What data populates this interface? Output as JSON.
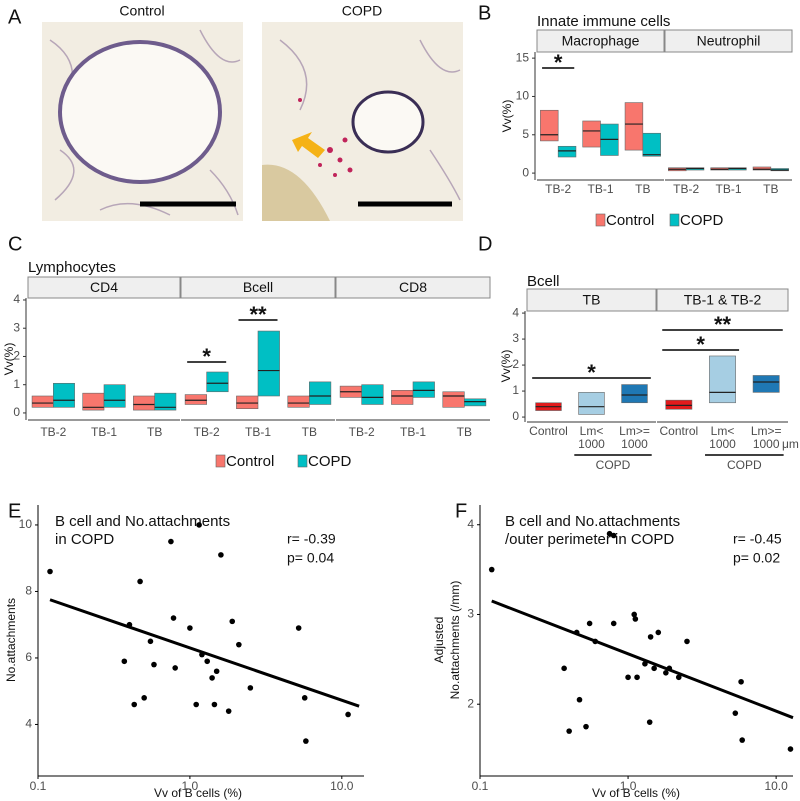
{
  "panel_labels": [
    "A",
    "B",
    "C",
    "D",
    "E",
    "F"
  ],
  "images": {
    "titles": [
      "Control",
      "COPD"
    ]
  },
  "chart_data": [
    {
      "type": "crossbar",
      "title": "Innate immune cells",
      "ylabel": "Vv(%)",
      "categories": [
        "TB-2",
        "TB-1",
        "TB"
      ],
      "series": [
        {
          "name": "Control",
          "color": "#f8766d"
        },
        {
          "name": "COPD",
          "color": "#00bfc4"
        }
      ],
      "facets": [
        {
          "name": "Macrophage",
          "series": [
            {
              "lower": [
                4.2,
                3.4,
                3.0
              ],
              "median": [
                5.0,
                5.5,
                6.4
              ],
              "upper": [
                8.2,
                6.8,
                9.2
              ]
            },
            {
              "lower": [
                2.1,
                2.3,
                2.2
              ],
              "median": [
                2.9,
                4.4,
                2.4
              ],
              "upper": [
                3.5,
                6.4,
                5.2
              ]
            }
          ]
        },
        {
          "name": "Neutrophil",
          "series": [
            {
              "lower": [
                0.3,
                0.4,
                0.4
              ],
              "median": [
                0.5,
                0.5,
                0.5
              ],
              "upper": [
                0.7,
                0.7,
                0.8
              ]
            },
            {
              "lower": [
                0.4,
                0.4,
                0.3
              ],
              "median": [
                0.6,
                0.6,
                0.4
              ],
              "upper": [
                0.7,
                0.7,
                0.6
              ]
            }
          ]
        }
      ],
      "ylim": [
        -0.9,
        15.8
      ],
      "yticks": [
        0,
        5,
        10,
        15
      ],
      "annotations": [
        "*"
      ]
    },
    {
      "type": "crossbar",
      "title": "Lymphocytes",
      "ylabel": "Vv(%)",
      "categories": [
        "TB-2",
        "TB-1",
        "TB"
      ],
      "series": [
        {
          "name": "Control",
          "color": "#f8766d"
        },
        {
          "name": "COPD",
          "color": "#00bfc4"
        }
      ],
      "facets": [
        {
          "name": "CD4",
          "series": [
            {
              "lower": [
                0.2,
                0.1,
                0.1
              ],
              "median": [
                0.35,
                0.2,
                0.3
              ],
              "upper": [
                0.6,
                0.7,
                0.6
              ]
            },
            {
              "lower": [
                0.2,
                0.2,
                0.1
              ],
              "median": [
                0.45,
                0.45,
                0.2
              ],
              "upper": [
                1.05,
                1.0,
                0.7
              ]
            }
          ]
        },
        {
          "name": "Bcell",
          "series": [
            {
              "lower": [
                0.3,
                0.15,
                0.2
              ],
              "median": [
                0.45,
                0.35,
                0.35
              ],
              "upper": [
                0.65,
                0.6,
                0.6
              ]
            },
            {
              "lower": [
                0.75,
                0.6,
                0.3
              ],
              "median": [
                1.05,
                1.5,
                0.6
              ],
              "upper": [
                1.45,
                2.9,
                1.1
              ]
            }
          ]
        },
        {
          "name": "CD8",
          "series": [
            {
              "lower": [
                0.55,
                0.3,
                0.2
              ],
              "median": [
                0.75,
                0.6,
                0.6
              ],
              "upper": [
                0.95,
                0.8,
                0.75
              ]
            },
            {
              "lower": [
                0.3,
                0.55,
                0.25
              ],
              "median": [
                0.55,
                0.8,
                0.4
              ],
              "upper": [
                1.0,
                1.1,
                0.5
              ]
            }
          ]
        }
      ],
      "ylim": [
        -0.25,
        4.07
      ],
      "yticks": [
        0,
        1,
        2,
        3,
        4
      ],
      "annotations": [
        "*",
        "**"
      ]
    },
    {
      "type": "crossbar",
      "title": "Bcell",
      "ylabel": "Vv(%)",
      "categories": [
        [
          "Control"
        ],
        [
          "Lm<",
          "1000"
        ],
        [
          "Lm>=",
          "1000"
        ]
      ],
      "colors": [
        "#e31a1c",
        "#a6cee3",
        "#1f78b4"
      ],
      "group_label": "COPD",
      "unit": "μm",
      "facets": [
        {
          "name": "TB",
          "lower": [
            0.25,
            0.1,
            0.55
          ],
          "median": [
            0.4,
            0.4,
            0.85
          ],
          "upper": [
            0.55,
            0.95,
            1.25
          ]
        },
        {
          "name": "TB-1 & TB-2",
          "lower": [
            0.3,
            0.55,
            0.95
          ],
          "median": [
            0.45,
            0.95,
            1.35
          ],
          "upper": [
            0.65,
            2.35,
            1.6
          ]
        }
      ],
      "ylim": [
        -0.19,
        4.08
      ],
      "yticks": [
        0,
        1,
        2,
        3,
        4
      ],
      "annotations": [
        "*",
        "*",
        "**"
      ]
    },
    {
      "type": "scatter",
      "title": [
        "B cell and No.attachments",
        "in COPD"
      ],
      "xlabel": "Vv of B cells (%)",
      "ylabel": [
        "No.attachments"
      ],
      "x": [
        0.12,
        0.37,
        0.4,
        0.43,
        0.47,
        0.5,
        0.55,
        0.58,
        0.75,
        0.78,
        0.8,
        1.0,
        1.1,
        1.15,
        1.2,
        1.3,
        1.4,
        1.45,
        1.5,
        1.6,
        1.8,
        1.9,
        2.1,
        2.5,
        5.2,
        5.7,
        5.8,
        11
      ],
      "y": [
        8.6,
        5.9,
        7.0,
        4.6,
        8.3,
        4.8,
        6.5,
        5.8,
        9.5,
        7.2,
        5.7,
        6.9,
        4.6,
        10.0,
        6.1,
        5.9,
        5.4,
        4.6,
        5.6,
        9.1,
        4.4,
        7.1,
        6.4,
        5.1,
        6.9,
        4.8,
        3.5,
        4.3
      ],
      "color": "#000000",
      "fit": {
        "x": [
          0.12,
          13
        ],
        "y": [
          7.75,
          4.55
        ]
      },
      "annotations": [
        "r= -0.39",
        "p= 0.04"
      ],
      "xscale": "log",
      "xlim": [
        0.1,
        14
      ],
      "xticks": [
        0.1,
        {
          "value": 1,
          "label": "1.0"
        },
        {
          "value": 10,
          "label": "10.0"
        }
      ],
      "ylim": [
        2.45,
        10.6
      ],
      "yticks": [
        4,
        6,
        8,
        10
      ]
    },
    {
      "type": "scatter",
      "title": [
        "B cell and No.attachments",
        "/outer perimeter in COPD"
      ],
      "xlabel": "Vv of B cells (%)",
      "ylabel": [
        "Adjusted",
        "No.attachments (/mm)"
      ],
      "x": [
        0.12,
        0.37,
        0.4,
        0.45,
        0.47,
        0.52,
        0.55,
        0.6,
        0.75,
        0.8,
        0.8,
        1.0,
        1.1,
        1.12,
        1.15,
        1.3,
        1.4,
        1.42,
        1.5,
        1.6,
        1.8,
        1.9,
        2.2,
        2.5,
        5.3,
        5.8,
        5.9,
        12.5
      ],
      "y": [
        3.5,
        2.4,
        1.7,
        2.8,
        2.05,
        1.75,
        2.9,
        2.7,
        3.9,
        3.88,
        2.9,
        2.3,
        3.0,
        2.95,
        2.3,
        2.45,
        1.8,
        2.75,
        2.4,
        2.8,
        2.35,
        2.4,
        2.3,
        2.7,
        1.9,
        2.25,
        1.6,
        1.5
      ],
      "color": "#000000",
      "fit": {
        "x": [
          0.12,
          13
        ],
        "y": [
          3.15,
          1.85
        ]
      },
      "annotations": [
        "r= -0.45",
        "p= 0.02"
      ],
      "xscale": "log",
      "xlim": [
        0.1,
        13
      ],
      "xticks": [
        0.1,
        {
          "value": 1,
          "label": "1.0"
        },
        {
          "value": 10,
          "label": "10.0"
        }
      ],
      "ylim": [
        1.2,
        4.22
      ],
      "yticks": [
        2,
        3,
        4
      ]
    }
  ]
}
